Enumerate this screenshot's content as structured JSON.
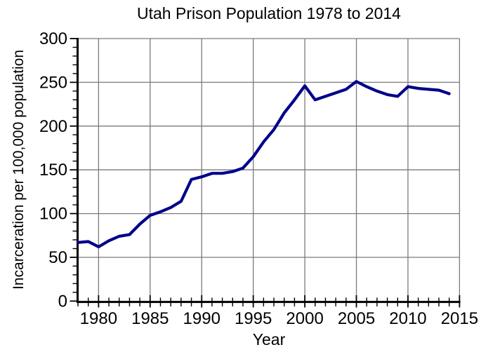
{
  "title": "Utah Prison Population 1978 to 2014",
  "axes": {
    "x_label": "Year",
    "y_label": "Incarceration per 100,000 population",
    "x_ticks": [
      1980,
      1985,
      1990,
      1995,
      2000,
      2005,
      2010,
      2015
    ],
    "y_ticks": [
      0,
      50,
      100,
      150,
      200,
      250,
      300
    ],
    "x_minor_step": 1,
    "y_minor_step": 10
  },
  "colors": {
    "line": "#00008B",
    "grid": "#7a7a7a",
    "axis": "#000000",
    "background": "#ffffff",
    "text": "#000000"
  },
  "chart_data": {
    "type": "line",
    "title": "Utah Prison Population 1978 to 2014",
    "xlabel": "Year",
    "ylabel": "Incarceration per 100,000 population",
    "xlim": [
      1978,
      2015
    ],
    "ylim": [
      0,
      300
    ],
    "grid": true,
    "legend": "none",
    "line_color": "#00008B",
    "x": [
      1978,
      1979,
      1980,
      1981,
      1982,
      1983,
      1984,
      1985,
      1986,
      1987,
      1988,
      1989,
      1990,
      1991,
      1992,
      1993,
      1994,
      1995,
      1996,
      1997,
      1998,
      1999,
      2000,
      2001,
      2002,
      2003,
      2004,
      2005,
      2006,
      2007,
      2008,
      2009,
      2010,
      2011,
      2012,
      2013,
      2014
    ],
    "y": [
      67,
      68,
      62,
      69,
      74,
      76,
      88,
      98,
      102,
      107,
      114,
      139,
      142,
      146,
      146,
      148,
      152,
      165,
      182,
      196,
      215,
      230,
      246,
      230,
      234,
      238,
      242,
      251,
      245,
      240,
      236,
      234,
      245,
      243,
      242,
      241,
      237
    ]
  }
}
